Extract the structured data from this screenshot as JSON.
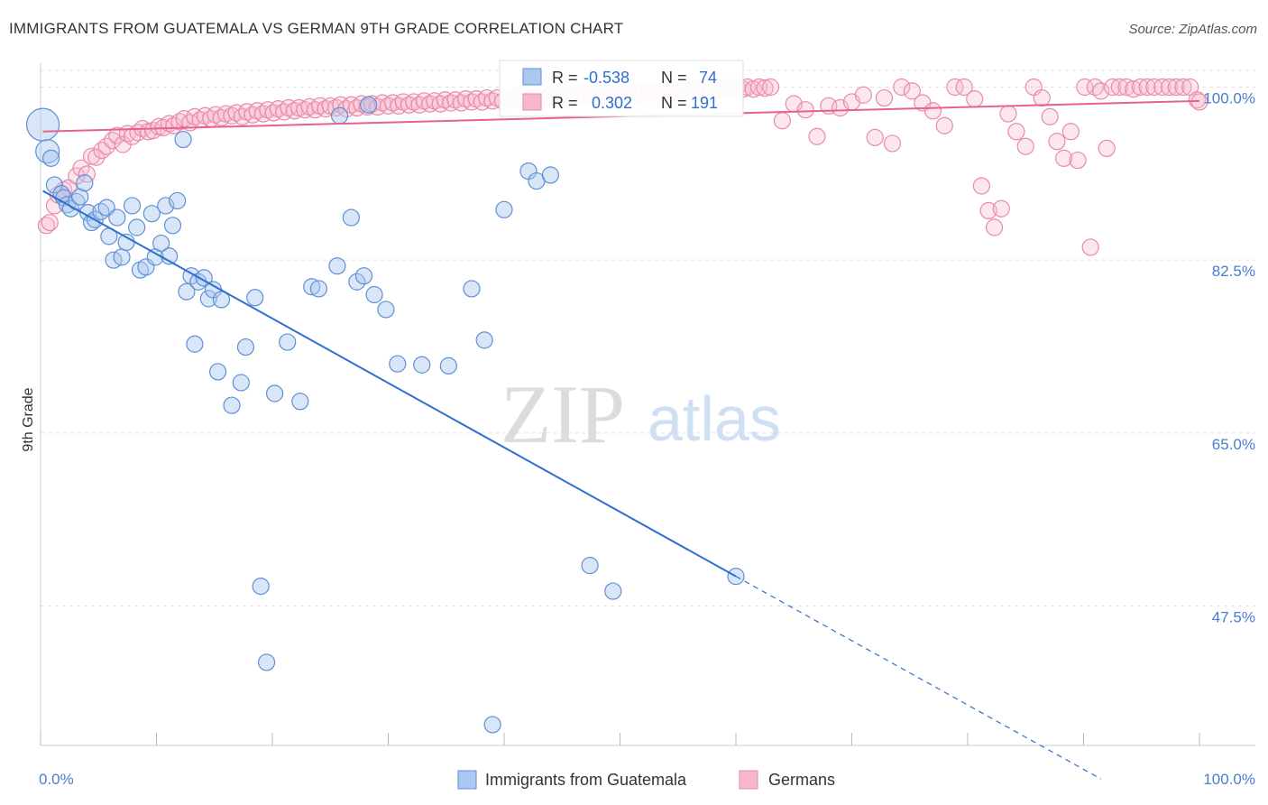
{
  "title": "IMMIGRANTS FROM GUATEMALA VS GERMAN 9TH GRADE CORRELATION CHART",
  "source": "Source: ZipAtlas.com",
  "watermark": {
    "zip": "ZIP",
    "atlas": "atlas"
  },
  "colors": {
    "blue_fill": "#aac8f0",
    "blue_stroke": "#5e90d6",
    "blue_line": "#2f6fd0",
    "pink_fill": "#f6b9cc",
    "pink_stroke": "#e98aa9",
    "pink_line": "#e5628e",
    "grid": "#e2e2e2",
    "tick_label": "#4a7ccf"
  },
  "stats": [
    {
      "series": "Immigrants from Guatemala",
      "r_label": "R =",
      "r": "-0.538",
      "n_label": "N =",
      "n": "74"
    },
    {
      "series": "Germans",
      "r_label": "R =",
      "r": "0.302",
      "n_label": "N =",
      "n": "191"
    }
  ],
  "chart_data": {
    "type": "scatter",
    "title": "IMMIGRANTS FROM GUATEMALA VS GERMAN 9TH GRADE CORRELATION CHART",
    "xlabel": "",
    "ylabel": "9th Grade",
    "xlim": [
      0,
      100
    ],
    "ylim": [
      32.5,
      102
    ],
    "x_tick_labels": [
      "0.0%",
      "100.0%"
    ],
    "y_ticks": [
      47.5,
      65.0,
      82.5,
      100.0
    ],
    "y_tick_labels": [
      "47.5%",
      "65.0%",
      "82.5%",
      "100.0%"
    ],
    "grid": true,
    "legend_position": "bottom-center",
    "series": [
      {
        "name": "Immigrants from Guatemala",
        "color": "#5e90d6",
        "trend": {
          "x": [
            0.2,
            60
          ],
          "y": [
            89.5,
            50.5
          ],
          "dashed_to": {
            "x": [
              60,
              91.5
            ],
            "y": [
              50.5,
              30
            ]
          }
        },
        "points": [
          [
            0.2,
            96.2
          ],
          [
            0.6,
            93.5
          ],
          [
            0.9,
            92.8
          ],
          [
            1.2,
            90.1
          ],
          [
            1.8,
            89.2
          ],
          [
            2.0,
            88.8
          ],
          [
            2.3,
            88.1
          ],
          [
            2.6,
            87.7
          ],
          [
            3.1,
            88.4
          ],
          [
            3.4,
            88.9
          ],
          [
            3.8,
            90.3
          ],
          [
            4.1,
            87.3
          ],
          [
            4.4,
            86.3
          ],
          [
            4.7,
            86.6
          ],
          [
            5.2,
            87.4
          ],
          [
            5.7,
            87.8
          ],
          [
            5.9,
            84.9
          ],
          [
            6.3,
            82.5
          ],
          [
            6.6,
            86.8
          ],
          [
            7.0,
            82.8
          ],
          [
            7.4,
            84.3
          ],
          [
            7.9,
            88.0
          ],
          [
            8.3,
            85.8
          ],
          [
            8.6,
            81.5
          ],
          [
            9.1,
            81.8
          ],
          [
            9.6,
            87.2
          ],
          [
            9.9,
            82.8
          ],
          [
            10.4,
            84.2
          ],
          [
            10.8,
            88.0
          ],
          [
            11.1,
            82.9
          ],
          [
            11.4,
            86.0
          ],
          [
            11.8,
            88.5
          ],
          [
            12.3,
            94.7
          ],
          [
            12.6,
            79.3
          ],
          [
            13.0,
            80.9
          ],
          [
            13.3,
            74.0
          ],
          [
            13.6,
            80.3
          ],
          [
            14.1,
            80.7
          ],
          [
            14.5,
            78.6
          ],
          [
            14.9,
            79.5
          ],
          [
            15.3,
            71.2
          ],
          [
            15.6,
            78.5
          ],
          [
            16.5,
            67.8
          ],
          [
            17.3,
            70.1
          ],
          [
            17.7,
            73.7
          ],
          [
            18.5,
            78.7
          ],
          [
            19.0,
            49.5
          ],
          [
            19.5,
            41.8
          ],
          [
            20.2,
            69.0
          ],
          [
            21.3,
            74.2
          ],
          [
            22.4,
            68.2
          ],
          [
            23.4,
            79.8
          ],
          [
            24.0,
            79.6
          ],
          [
            25.6,
            81.9
          ],
          [
            25.8,
            97.1
          ],
          [
            26.8,
            86.8
          ],
          [
            27.3,
            80.3
          ],
          [
            27.9,
            80.9
          ],
          [
            28.3,
            98.2
          ],
          [
            28.8,
            79.0
          ],
          [
            29.8,
            77.5
          ],
          [
            30.8,
            72.0
          ],
          [
            32.9,
            71.9
          ],
          [
            35.2,
            71.8
          ],
          [
            37.2,
            79.6
          ],
          [
            38.3,
            74.4
          ],
          [
            40.0,
            87.6
          ],
          [
            42.1,
            91.5
          ],
          [
            42.8,
            90.5
          ],
          [
            44.0,
            91.1
          ],
          [
            47.4,
            51.6
          ],
          [
            49.4,
            49.0
          ],
          [
            39.0,
            35.5
          ],
          [
            60.0,
            50.5
          ]
        ]
      },
      {
        "name": "Germans",
        "color": "#e98aa9",
        "trend": {
          "x": [
            0.2,
            100
          ],
          "y": [
            95.5,
            98.6
          ]
        },
        "points": [
          [
            0.5,
            86.0
          ],
          [
            0.8,
            86.3
          ],
          [
            1.2,
            88.0
          ],
          [
            1.5,
            89.1
          ],
          [
            2.0,
            89.6
          ],
          [
            2.4,
            89.8
          ],
          [
            3.1,
            91.0
          ],
          [
            3.5,
            91.8
          ],
          [
            4.0,
            91.2
          ],
          [
            4.4,
            93.0
          ],
          [
            4.8,
            92.9
          ],
          [
            5.3,
            93.6
          ],
          [
            5.7,
            94.0
          ],
          [
            6.2,
            94.6
          ],
          [
            6.6,
            95.1
          ],
          [
            7.1,
            94.2
          ],
          [
            7.5,
            95.3
          ],
          [
            7.9,
            95.0
          ],
          [
            8.4,
            95.4
          ],
          [
            8.8,
            95.8
          ],
          [
            9.3,
            95.5
          ],
          [
            9.7,
            95.6
          ],
          [
            10.2,
            96.0
          ],
          [
            10.6,
            95.9
          ],
          [
            11.1,
            96.3
          ],
          [
            11.5,
            96.1
          ],
          [
            12.0,
            96.5
          ],
          [
            12.4,
            96.8
          ],
          [
            12.9,
            96.4
          ],
          [
            13.3,
            97.0
          ],
          [
            13.8,
            96.7
          ],
          [
            14.2,
            97.1
          ],
          [
            14.7,
            96.8
          ],
          [
            15.1,
            97.2
          ],
          [
            15.6,
            96.9
          ],
          [
            16.0,
            97.3
          ],
          [
            16.5,
            97.1
          ],
          [
            16.9,
            97.4
          ],
          [
            17.4,
            97.0
          ],
          [
            17.8,
            97.5
          ],
          [
            18.3,
            97.2
          ],
          [
            18.7,
            97.6
          ],
          [
            19.2,
            97.3
          ],
          [
            19.6,
            97.7
          ],
          [
            20.1,
            97.4
          ],
          [
            20.5,
            97.8
          ],
          [
            21.0,
            97.5
          ],
          [
            21.4,
            97.9
          ],
          [
            21.9,
            97.6
          ],
          [
            22.3,
            97.9
          ],
          [
            22.8,
            97.7
          ],
          [
            23.2,
            98.0
          ],
          [
            23.7,
            97.7
          ],
          [
            24.1,
            98.1
          ],
          [
            24.6,
            97.8
          ],
          [
            25.0,
            98.1
          ],
          [
            25.5,
            97.9
          ],
          [
            25.9,
            98.2
          ],
          [
            26.4,
            97.8
          ],
          [
            26.8,
            98.2
          ],
          [
            27.3,
            97.9
          ],
          [
            27.7,
            98.3
          ],
          [
            28.2,
            98.0
          ],
          [
            28.6,
            98.3
          ],
          [
            29.1,
            98.0
          ],
          [
            29.5,
            98.4
          ],
          [
            30.0,
            98.1
          ],
          [
            30.4,
            98.4
          ],
          [
            30.9,
            98.1
          ],
          [
            31.3,
            98.5
          ],
          [
            31.8,
            98.2
          ],
          [
            32.2,
            98.5
          ],
          [
            32.7,
            98.2
          ],
          [
            33.1,
            98.6
          ],
          [
            33.6,
            98.3
          ],
          [
            34.0,
            98.6
          ],
          [
            34.5,
            98.3
          ],
          [
            34.9,
            98.7
          ],
          [
            35.4,
            98.4
          ],
          [
            35.8,
            98.7
          ],
          [
            36.3,
            98.4
          ],
          [
            36.7,
            98.8
          ],
          [
            37.2,
            98.5
          ],
          [
            37.6,
            98.8
          ],
          [
            38.1,
            98.5
          ],
          [
            38.5,
            98.9
          ],
          [
            39.0,
            98.6
          ],
          [
            39.4,
            98.9
          ],
          [
            39.9,
            98.6
          ],
          [
            40.3,
            98.9
          ],
          [
            40.8,
            98.7
          ],
          [
            41.2,
            99.0
          ],
          [
            41.7,
            98.7
          ],
          [
            42.1,
            99.0
          ],
          [
            42.6,
            98.8
          ],
          [
            43.0,
            99.1
          ],
          [
            43.5,
            98.8
          ],
          [
            43.9,
            99.1
          ],
          [
            44.4,
            98.9
          ],
          [
            44.8,
            99.2
          ],
          [
            45.3,
            98.9
          ],
          [
            45.7,
            99.2
          ],
          [
            46.2,
            99.0
          ],
          [
            46.6,
            99.3
          ],
          [
            47.1,
            99.0
          ],
          [
            47.5,
            99.3
          ],
          [
            48.0,
            99.1
          ],
          [
            48.4,
            99.4
          ],
          [
            48.9,
            99.1
          ],
          [
            49.3,
            99.4
          ],
          [
            49.8,
            99.2
          ],
          [
            50.2,
            99.5
          ],
          [
            50.7,
            99.2
          ],
          [
            51.1,
            99.5
          ],
          [
            51.6,
            99.3
          ],
          [
            52.0,
            99.6
          ],
          [
            52.5,
            99.3
          ],
          [
            52.9,
            99.6
          ],
          [
            53.4,
            99.4
          ],
          [
            53.8,
            99.7
          ],
          [
            54.3,
            99.4
          ],
          [
            54.7,
            99.7
          ],
          [
            55.2,
            99.5
          ],
          [
            55.6,
            99.8
          ],
          [
            56.1,
            99.5
          ],
          [
            56.5,
            99.8
          ],
          [
            57.0,
            99.6
          ],
          [
            57.4,
            99.9
          ],
          [
            57.9,
            99.6
          ],
          [
            58.3,
            99.9
          ],
          [
            58.8,
            99.7
          ],
          [
            59.2,
            100.0
          ],
          [
            59.7,
            99.7
          ],
          [
            60.1,
            100.0
          ],
          [
            60.6,
            99.8
          ],
          [
            61.0,
            100.0
          ],
          [
            61.5,
            99.8
          ],
          [
            62.0,
            100.0
          ],
          [
            62.5,
            99.9
          ],
          [
            63.0,
            100.0
          ],
          [
            64.0,
            96.6
          ],
          [
            65.0,
            98.3
          ],
          [
            66.0,
            97.7
          ],
          [
            67.0,
            95.0
          ],
          [
            68.0,
            98.1
          ],
          [
            69.0,
            97.9
          ],
          [
            70.0,
            98.5
          ],
          [
            71.0,
            99.2
          ],
          [
            72.0,
            94.9
          ],
          [
            72.8,
            98.9
          ],
          [
            73.5,
            94.3
          ],
          [
            74.3,
            100.0
          ],
          [
            75.2,
            99.6
          ],
          [
            76.1,
            98.4
          ],
          [
            77.0,
            97.6
          ],
          [
            78.0,
            96.1
          ],
          [
            78.9,
            100.0
          ],
          [
            79.7,
            100.0
          ],
          [
            80.6,
            98.8
          ],
          [
            81.2,
            90.0
          ],
          [
            81.8,
            87.5
          ],
          [
            82.3,
            85.8
          ],
          [
            82.9,
            87.7
          ],
          [
            83.5,
            97.3
          ],
          [
            84.2,
            95.5
          ],
          [
            85.0,
            94.0
          ],
          [
            85.7,
            100.0
          ],
          [
            86.4,
            98.9
          ],
          [
            87.1,
            97.0
          ],
          [
            87.7,
            94.5
          ],
          [
            88.3,
            92.8
          ],
          [
            88.9,
            95.5
          ],
          [
            89.5,
            92.6
          ],
          [
            90.1,
            100.0
          ],
          [
            90.6,
            83.8
          ],
          [
            91.0,
            100.0
          ],
          [
            91.5,
            99.6
          ],
          [
            92.0,
            93.8
          ],
          [
            92.5,
            100.0
          ],
          [
            93.1,
            100.0
          ],
          [
            93.7,
            100.0
          ],
          [
            94.3,
            99.8
          ],
          [
            94.9,
            100.0
          ],
          [
            95.5,
            100.0
          ],
          [
            96.1,
            100.0
          ],
          [
            96.8,
            100.0
          ],
          [
            97.4,
            100.0
          ],
          [
            98.0,
            100.0
          ],
          [
            98.6,
            100.0
          ],
          [
            99.2,
            100.0
          ],
          [
            99.8,
            98.7
          ],
          [
            100.0,
            98.5
          ]
        ]
      }
    ]
  }
}
